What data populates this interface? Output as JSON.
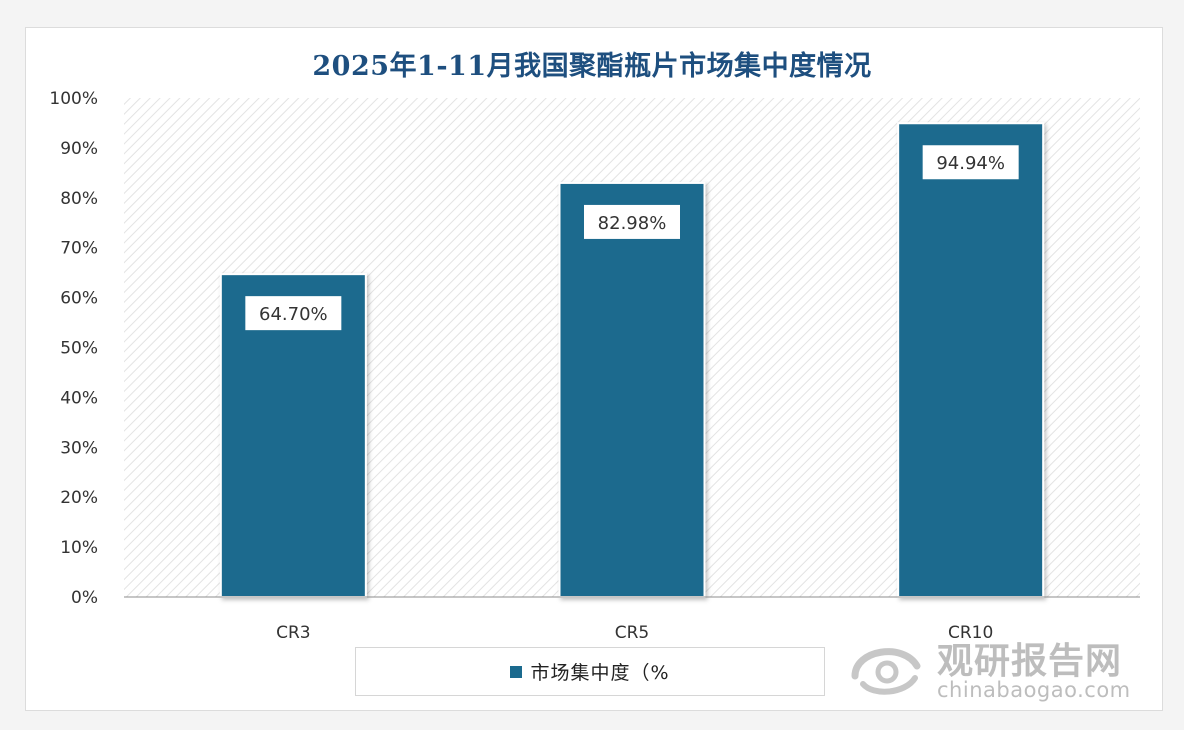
{
  "chart_data": {
    "type": "bar",
    "title": "2025年1-11月我国聚酯瓶片市场集中度情况",
    "categories": [
      "CR3",
      "CR5",
      "CR10"
    ],
    "series": [
      {
        "name": "市场集中度（%",
        "values": [
          64.7,
          82.98,
          94.94
        ]
      }
    ],
    "data_labels": [
      "64.70%",
      "82.98%",
      "94.94%"
    ],
    "y_ticks": [
      "0%",
      "10%",
      "20%",
      "30%",
      "40%",
      "50%",
      "60%",
      "70%",
      "80%",
      "90%",
      "100%"
    ],
    "ylim": [
      0,
      100
    ],
    "grid": false,
    "legend_position": "bottom"
  },
  "colors": {
    "bar": "#1b6a8e",
    "title": "#1e4f7f"
  },
  "watermark": {
    "name_cn": "观研报告网",
    "site": "chinabaogao.com"
  }
}
